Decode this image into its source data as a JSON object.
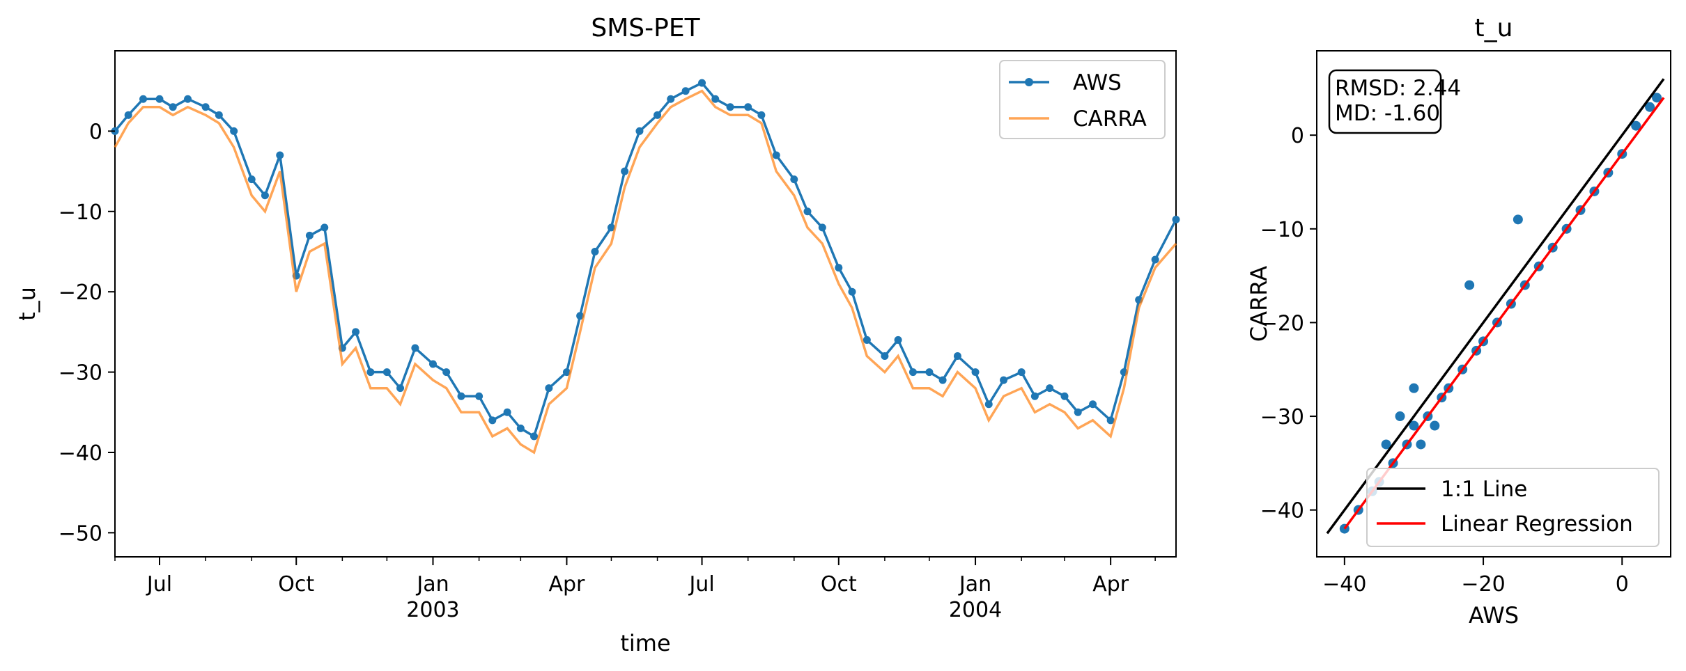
{
  "chart_data": [
    {
      "type": "line",
      "title": "SMS-PET",
      "xlabel": "time",
      "ylabel": "t_u",
      "ylim": [
        -53,
        10
      ],
      "xlim": [
        "2002-06-01",
        "2004-05-15"
      ],
      "yticks": [
        0,
        -10,
        -20,
        -30,
        -40,
        -50
      ],
      "xticks": [
        {
          "date": "2002-07-01",
          "label": "Jul",
          "sub": ""
        },
        {
          "date": "2002-10-01",
          "label": "Oct",
          "sub": ""
        },
        {
          "date": "2003-01-01",
          "label": "Jan",
          "sub": "2003"
        },
        {
          "date": "2003-04-01",
          "label": "Apr",
          "sub": ""
        },
        {
          "date": "2003-07-01",
          "label": "Jul",
          "sub": ""
        },
        {
          "date": "2003-10-01",
          "label": "Oct",
          "sub": ""
        },
        {
          "date": "2004-01-01",
          "label": "Jan",
          "sub": "2004"
        },
        {
          "date": "2004-04-01",
          "label": "Apr",
          "sub": ""
        }
      ],
      "legend": {
        "position": "top-right",
        "entries": [
          "AWS",
          "CARRA"
        ]
      },
      "series": [
        {
          "name": "AWS",
          "color": "#1f77b4",
          "marker": "circle",
          "x": [
            "2002-06-01",
            "2002-06-10",
            "2002-06-20",
            "2002-07-01",
            "2002-07-10",
            "2002-07-20",
            "2002-08-01",
            "2002-08-10",
            "2002-08-20",
            "2002-09-01",
            "2002-09-10",
            "2002-09-20",
            "2002-10-01",
            "2002-10-10",
            "2002-10-20",
            "2002-11-01",
            "2002-11-10",
            "2002-11-20",
            "2002-12-01",
            "2002-12-10",
            "2002-12-20",
            "2003-01-01",
            "2003-01-10",
            "2003-01-20",
            "2003-02-01",
            "2003-02-10",
            "2003-02-20",
            "2003-03-01",
            "2003-03-10",
            "2003-03-20",
            "2003-04-01",
            "2003-04-10",
            "2003-04-20",
            "2003-05-01",
            "2003-05-10",
            "2003-05-20",
            "2003-06-01",
            "2003-06-10",
            "2003-06-20",
            "2003-07-01",
            "2003-07-10",
            "2003-07-20",
            "2003-08-01",
            "2003-08-10",
            "2003-08-20",
            "2003-09-01",
            "2003-09-10",
            "2003-09-20",
            "2003-10-01",
            "2003-10-10",
            "2003-10-20",
            "2003-11-01",
            "2003-11-10",
            "2003-11-20",
            "2003-12-01",
            "2003-12-10",
            "2003-12-20",
            "2004-01-01",
            "2004-01-10",
            "2004-01-20",
            "2004-02-01",
            "2004-02-10",
            "2004-02-20",
            "2004-03-01",
            "2004-03-10",
            "2004-03-20",
            "2004-04-01",
            "2004-04-10",
            "2004-04-20",
            "2004-05-01",
            "2004-05-15"
          ],
          "values": [
            0,
            2,
            4,
            4,
            3,
            4,
            3,
            2,
            0,
            -6,
            -8,
            -3,
            -18,
            -13,
            -12,
            -27,
            -25,
            -30,
            -30,
            -32,
            -27,
            -29,
            -30,
            -33,
            -33,
            -36,
            -35,
            -37,
            -38,
            -32,
            -30,
            -23,
            -15,
            -12,
            -5,
            0,
            2,
            4,
            5,
            6,
            4,
            3,
            3,
            2,
            -3,
            -6,
            -10,
            -12,
            -17,
            -20,
            -26,
            -28,
            -26,
            -30,
            -30,
            -31,
            -28,
            -30,
            -34,
            -31,
            -30,
            -33,
            -32,
            -33,
            -35,
            -34,
            -36,
            -30,
            -21,
            -16,
            -11
          ]
        },
        {
          "name": "CARRA",
          "color": "#ff7f0e",
          "marker": "none",
          "x": [
            "2002-06-01",
            "2002-06-10",
            "2002-06-20",
            "2002-07-01",
            "2002-07-10",
            "2002-07-20",
            "2002-08-01",
            "2002-08-10",
            "2002-08-20",
            "2002-09-01",
            "2002-09-10",
            "2002-09-20",
            "2002-10-01",
            "2002-10-10",
            "2002-10-20",
            "2002-11-01",
            "2002-11-10",
            "2002-11-20",
            "2002-12-01",
            "2002-12-10",
            "2002-12-20",
            "2003-01-01",
            "2003-01-10",
            "2003-01-20",
            "2003-02-01",
            "2003-02-10",
            "2003-02-20",
            "2003-03-01",
            "2003-03-10",
            "2003-03-20",
            "2003-04-01",
            "2003-04-10",
            "2003-04-20",
            "2003-05-01",
            "2003-05-10",
            "2003-05-20",
            "2003-06-01",
            "2003-06-10",
            "2003-06-20",
            "2003-07-01",
            "2003-07-10",
            "2003-07-20",
            "2003-08-01",
            "2003-08-10",
            "2003-08-20",
            "2003-09-01",
            "2003-09-10",
            "2003-09-20",
            "2003-10-01",
            "2003-10-10",
            "2003-10-20",
            "2003-11-01",
            "2003-11-10",
            "2003-11-20",
            "2003-12-01",
            "2003-12-10",
            "2003-12-20",
            "2004-01-01",
            "2004-01-10",
            "2004-01-20",
            "2004-02-01",
            "2004-02-10",
            "2004-02-20",
            "2004-03-01",
            "2004-03-10",
            "2004-03-20",
            "2004-04-01",
            "2004-04-10",
            "2004-04-20",
            "2004-05-01",
            "2004-05-15"
          ],
          "values": [
            -2,
            1,
            3,
            3,
            2,
            3,
            2,
            1,
            -2,
            -8,
            -10,
            -5,
            -20,
            -15,
            -14,
            -29,
            -27,
            -32,
            -32,
            -34,
            -29,
            -31,
            -32,
            -35,
            -35,
            -38,
            -37,
            -39,
            -40,
            -34,
            -32,
            -25,
            -17,
            -14,
            -7,
            -2,
            1,
            3,
            4,
            5,
            3,
            2,
            2,
            1,
            -5,
            -8,
            -12,
            -14,
            -19,
            -22,
            -28,
            -30,
            -28,
            -32,
            -32,
            -33,
            -30,
            -32,
            -36,
            -33,
            -32,
            -35,
            -34,
            -35,
            -37,
            -36,
            -38,
            -32,
            -22,
            -17,
            -14
          ]
        }
      ]
    },
    {
      "type": "scatter",
      "title": "t_u",
      "xlabel": "AWS",
      "ylabel": "CARRA",
      "xlim": [
        -44,
        7
      ],
      "ylim": [
        -45,
        9
      ],
      "xticks": [
        -40,
        -20,
        0
      ],
      "yticks": [
        0,
        -10,
        -20,
        -30,
        -40
      ],
      "annotation": {
        "rmsd": "RMSD: 2.44",
        "md": "MD: -1.60"
      },
      "legend": {
        "position": "bottom-right",
        "entries": [
          "1:1 Line",
          "Linear Regression"
        ]
      },
      "points_color": "#1f77b4",
      "x": [
        -40,
        -38,
        -36,
        -35,
        -33,
        -31,
        -30,
        -28,
        -26,
        -25,
        -23,
        -21,
        -20,
        -18,
        -16,
        -14,
        -12,
        -10,
        -8,
        -6,
        -4,
        -2,
        0,
        2,
        4,
        5,
        -34,
        -32,
        -30,
        -22,
        -15,
        -27,
        -29
      ],
      "y": [
        -42,
        -40,
        -38,
        -37,
        -35,
        -33,
        -31,
        -30,
        -28,
        -27,
        -25,
        -23,
        -22,
        -20,
        -18,
        -16,
        -14,
        -12,
        -10,
        -8,
        -6,
        -4,
        -2,
        1,
        3,
        4,
        -33,
        -30,
        -27,
        -16,
        -9,
        -31,
        -33
      ],
      "lines": [
        {
          "name": "1:1 Line",
          "color": "#000000",
          "x": [
            -42.5,
            6
          ],
          "y": [
            -42.5,
            6
          ]
        },
        {
          "name": "Linear Regression",
          "color": "#ff0000",
          "x": [
            -40,
            6
          ],
          "y": [
            -42,
            4
          ]
        }
      ]
    }
  ]
}
